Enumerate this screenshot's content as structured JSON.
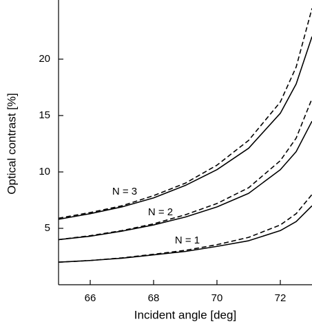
{
  "chart_data": {
    "type": "line",
    "x_label": "Incident angle [deg]",
    "y_label": "Optical contrast [%]",
    "x": [
      65,
      66,
      67,
      68,
      69,
      70,
      71,
      72,
      72.5,
      73
    ],
    "series": [
      {
        "color": "#000000",
        "dashed": false,
        "values": [
          2.0,
          2.15,
          2.35,
          2.65,
          2.95,
          3.4,
          3.9,
          4.8,
          5.6,
          7.0
        ]
      },
      {
        "color": "#000000",
        "dashed": true,
        "values": [
          2.0,
          2.15,
          2.38,
          2.7,
          3.05,
          3.55,
          4.2,
          5.3,
          6.3,
          8.0
        ]
      },
      {
        "color": "#000000",
        "dashed": false,
        "values": [
          4.0,
          4.3,
          4.75,
          5.3,
          6.0,
          6.9,
          8.1,
          10.2,
          11.8,
          14.5
        ]
      },
      {
        "color": "#000000",
        "dashed": true,
        "values": [
          4.0,
          4.35,
          4.8,
          5.4,
          6.2,
          7.2,
          8.6,
          11.0,
          13.0,
          16.5
        ]
      },
      {
        "color": "#000000",
        "dashed": false,
        "values": [
          5.8,
          6.3,
          6.9,
          7.7,
          8.8,
          10.2,
          12.1,
          15.2,
          17.8,
          22.0
        ]
      },
      {
        "color": "#000000",
        "dashed": true,
        "values": [
          5.9,
          6.4,
          7.0,
          7.9,
          9.0,
          10.6,
          12.8,
          16.2,
          19.3,
          24.5
        ]
      }
    ],
    "annotations": [
      "N = 3",
      "N = 2",
      "N = 1"
    ],
    "xlim": [
      65,
      73
    ],
    "xticks": [
      66,
      68,
      70,
      72
    ],
    "ylim": [
      0,
      25
    ],
    "yticks": [
      5,
      10,
      15,
      20
    ],
    "grid": false
  }
}
